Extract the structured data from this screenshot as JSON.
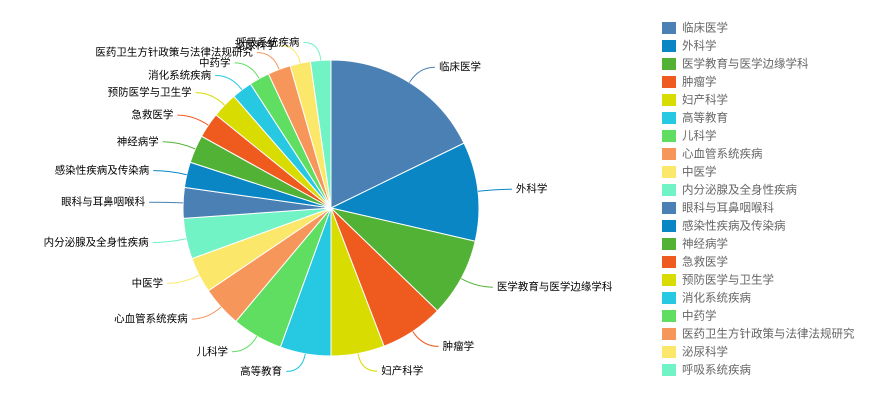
{
  "chart_data": {
    "type": "pie",
    "categories": [
      "临床医学",
      "外科学",
      "医学教育与医学边缘学科",
      "肿瘤学",
      "妇产科学",
      "高等教育",
      "儿科学",
      "心血管系统疾病",
      "中医学",
      "内分泌腺及全身性疾病",
      "眼科与耳鼻咽喉科",
      "感染性疾病及传染病",
      "神经病学",
      "急救医学",
      "预防医学与卫生学",
      "消化系统疾病",
      "中药学",
      "医药卫生方针政策与法律法规研究",
      "泌尿科学",
      "呼吸系统疾病"
    ],
    "values": [
      64,
      39,
      31,
      25,
      21,
      20,
      20,
      16,
      14,
      16,
      12,
      10,
      11,
      10,
      10,
      8,
      8,
      9,
      8,
      8
    ],
    "colors": [
      "#4a80b3",
      "#0a86c5",
      "#52b235",
      "#ef5a1f",
      "#d8dc00",
      "#27c8e2",
      "#60de62",
      "#f7965a",
      "#fbe86a",
      "#72f3c6",
      "#4a80b3",
      "#0a86c5",
      "#52b235",
      "#ef5a1f",
      "#d8dc00",
      "#27c8e2",
      "#60de62",
      "#f7965a",
      "#fbe86a",
      "#72f3c6"
    ],
    "legend": "right"
  }
}
